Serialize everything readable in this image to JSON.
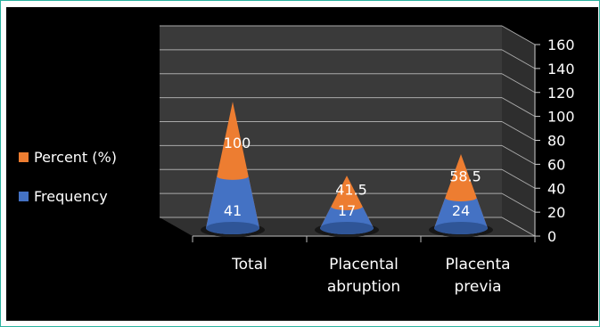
{
  "chart_data": {
    "type": "bar",
    "style": "3d-cone",
    "categories": [
      "Total",
      "Placental abruption",
      "Placenta previa"
    ],
    "category_lines": [
      [
        "Total"
      ],
      [
        "Placental",
        "abruption"
      ],
      [
        "Placenta",
        "previa"
      ]
    ],
    "series": [
      {
        "name": "Frequency",
        "values": [
          41,
          17,
          24
        ],
        "color": "#4472c4",
        "label_key": "frequency"
      },
      {
        "name": "Percent (%)",
        "values": [
          100,
          41.5,
          58.5
        ],
        "color": "#ed7d31",
        "label_key": "percent"
      }
    ],
    "data_labels": {
      "frequency": [
        "41",
        "17",
        "24"
      ],
      "percent": [
        "100",
        "41.5",
        "58.5"
      ]
    },
    "yticks": [
      0,
      20,
      40,
      60,
      80,
      100,
      120,
      140,
      160
    ],
    "ylim": [
      0,
      160
    ],
    "title": "",
    "xlabel": "",
    "ylabel": "",
    "grid": true,
    "legend_position": "left",
    "background": "#000000",
    "grid_color": "#aaaaaa",
    "wall_color": "#3a3a3a"
  },
  "legend": {
    "items": [
      {
        "label": "Percent (%)",
        "color": "#ed7d31"
      },
      {
        "label": "Frequency",
        "color": "#4472c4"
      }
    ]
  }
}
